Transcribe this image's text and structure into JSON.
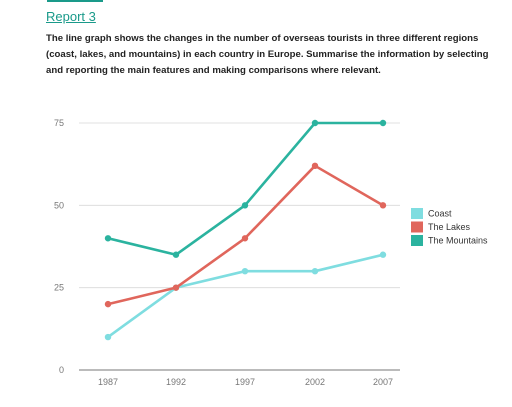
{
  "header": {
    "report_link": "Report 3",
    "prompt": "The line graph shows the changes in the number of overseas tourists in three different regions (coast, lakes, and mountains) in each country in Europe. Summarise the information by selecting and reporting the main features and making comparisons where relevant."
  },
  "chart_data": {
    "type": "line",
    "title": "",
    "xlabel": "",
    "ylabel": "",
    "x": [
      "1987",
      "1992",
      "1997",
      "2002",
      "2007"
    ],
    "ylim": [
      0,
      75
    ],
    "yticks": [
      0,
      25,
      50,
      75
    ],
    "grid": true,
    "legend_position": "right",
    "series": [
      {
        "name": "Coast",
        "color": "#7fdde0",
        "values": [
          10,
          25,
          30,
          30,
          35
        ]
      },
      {
        "name": "The Lakes",
        "color": "#e0665c",
        "values": [
          20,
          25,
          40,
          62,
          50
        ]
      },
      {
        "name": "The Mountains",
        "color": "#2bb39f",
        "values": [
          40,
          35,
          50,
          75,
          75
        ]
      }
    ]
  }
}
